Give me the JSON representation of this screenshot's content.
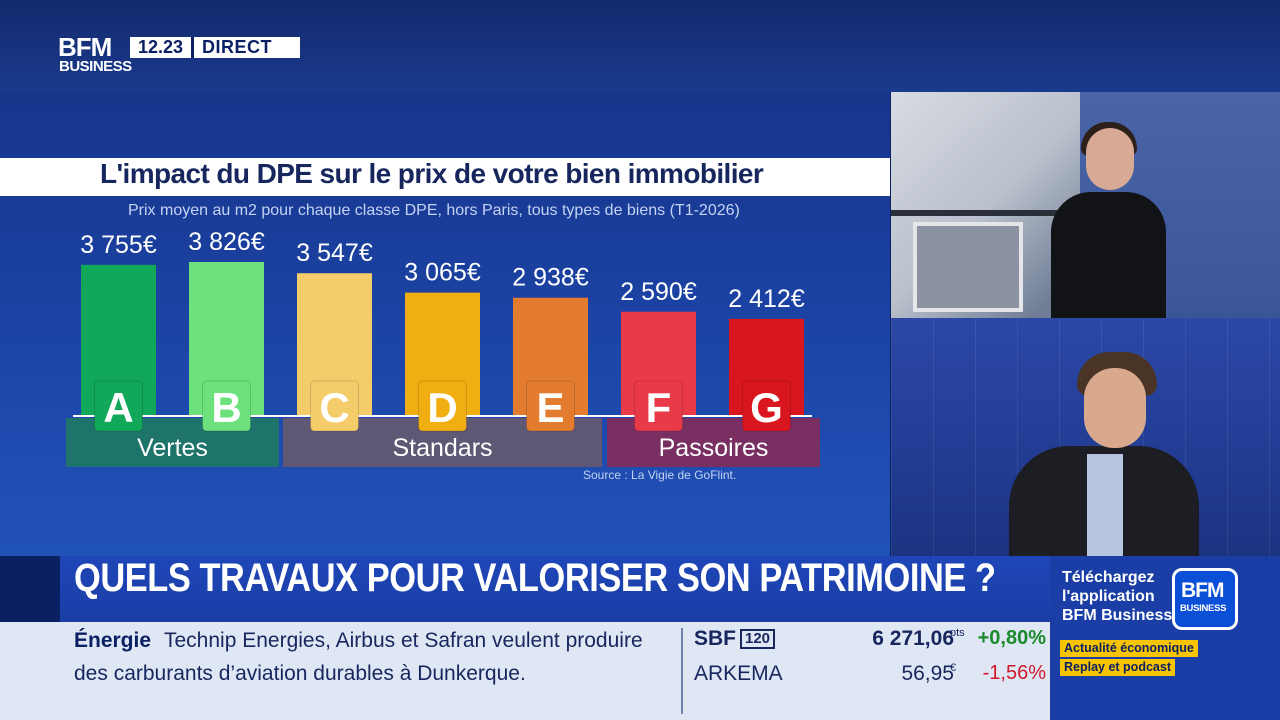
{
  "channel": {
    "logo_top": "BFM",
    "logo_bottom": "BUSINESS",
    "time": "12.23",
    "live_label": "DIRECT"
  },
  "chart_data": {
    "type": "bar",
    "title": "L'impact du DPE sur le prix de votre bien immobilier",
    "subtitle": "Prix moyen au m2 pour chaque classe DPE, hors Paris, tous types de biens (T1-2026)",
    "categories": [
      "A",
      "B",
      "C",
      "D",
      "E",
      "F",
      "G"
    ],
    "values": [
      3755,
      3826,
      3547,
      3065,
      2938,
      2590,
      2412
    ],
    "value_labels": [
      "3 755€",
      "3 826€",
      "3 547€",
      "3 065€",
      "2 938€",
      "2 590€",
      "2 412€"
    ],
    "bar_colors": [
      "#12a85a",
      "#6ce17c",
      "#f4cd6a",
      "#f1ae12",
      "#e47c2f",
      "#e93a4a",
      "#d9151e"
    ],
    "groups": [
      {
        "label": "Vertes",
        "categories": [
          "A",
          "B"
        ],
        "color": "#1f7a5e"
      },
      {
        "label": "Standars",
        "categories": [
          "C",
          "D",
          "E"
        ],
        "color": "#6a5a6a"
      },
      {
        "label": "Passoires",
        "categories": [
          "F",
          "G"
        ],
        "color": "#8a2a55"
      }
    ],
    "source": "Source : La Vigie de GoFlint.",
    "ylim": [
      0,
      3826
    ],
    "grid": false
  },
  "headline": "QUELS TRAVAUX POUR VALORISER SON PATRIMOINE ?",
  "promo": {
    "line1": "Téléchargez",
    "line2": "l'application",
    "line3": "BFM Business",
    "logo_top": "BFM",
    "logo_bottom": "BUSINESS",
    "tag1": "Actualité économique",
    "tag2": "Replay et podcast"
  },
  "news": {
    "tag": "Énergie",
    "line1": "Technip Energies, Airbus et Safran veulent produire",
    "line2": "des carburants d’aviation durables à Dunkerque."
  },
  "market": [
    {
      "name": "SBF",
      "badge": "120",
      "value": "6 271,06",
      "unit": "pts",
      "change": "+0,80%",
      "direction": "up"
    },
    {
      "name": "ARKEMA",
      "badge": "",
      "value": "56,95",
      "unit": "€",
      "change": "-1,56%",
      "direction": "down"
    }
  ]
}
